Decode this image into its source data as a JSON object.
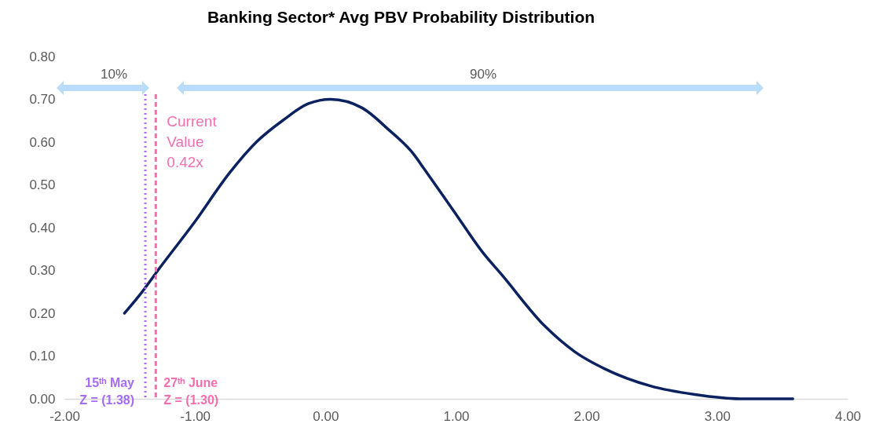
{
  "chart_data": {
    "type": "line",
    "title": "Banking Sector* Avg PBV Probability Distribution",
    "x": [
      -1.54,
      -1.43,
      -1.26,
      -1.01,
      -0.73,
      -0.53,
      -0.33,
      -0.13,
      0.04,
      0.28,
      0.48,
      0.68,
      0.75,
      0.98,
      1.21,
      1.35,
      1.68,
      1.91,
      2.14,
      2.49,
      2.83,
      3.18,
      3.58
    ],
    "series": [
      {
        "color": "#0b2160",
        "values": [
          0.2,
          0.24,
          0.31,
          0.41,
          0.53,
          0.6,
          0.65,
          0.69,
          0.7,
          0.68,
          0.63,
          0.57,
          0.54,
          0.44,
          0.34,
          0.29,
          0.17,
          0.11,
          0.07,
          0.03,
          0.01,
          0.0,
          0.0
        ]
      }
    ],
    "xlim": [
      -2,
      4
    ],
    "xticks": [
      {
        "value": -2,
        "label": "-2.00"
      },
      {
        "value": -1,
        "label": "-1.00"
      },
      {
        "value": 0,
        "label": "0.00"
      },
      {
        "value": 1,
        "label": "1.00"
      },
      {
        "value": 2,
        "label": "2.00"
      },
      {
        "value": 3,
        "label": "3.00"
      },
      {
        "value": 4,
        "label": "4.00"
      }
    ],
    "ylim": [
      0,
      0.8
    ],
    "yticks": [
      {
        "value": 0,
        "label": "0.00"
      },
      {
        "value": 0.1,
        "label": "0.10"
      },
      {
        "value": 0.2,
        "label": "0.20"
      },
      {
        "value": 0.3,
        "label": "0.30"
      },
      {
        "value": 0.4,
        "label": "0.40"
      },
      {
        "value": 0.5,
        "label": "0.50"
      },
      {
        "value": 0.6,
        "label": "0.60"
      },
      {
        "value": 0.7,
        "label": "0.70"
      },
      {
        "value": 0.8,
        "label": "0.80"
      }
    ],
    "grid": false,
    "marker": "none",
    "line_style": "solid",
    "ref_lines": [
      {
        "axis": "x",
        "value": -1.38,
        "label": "15ᵗʰ May\nZ = (1.38)",
        "color": "#a66cf5",
        "line_style": "dotted"
      },
      {
        "axis": "x",
        "value": -1.3,
        "label": "27ᵗʰ June\nZ = (1.30)",
        "color": "#f76eb0",
        "line_style": "dashed"
      }
    ],
    "annotations": [
      "Current\nValue\n0.42x",
      "10%",
      "90%"
    ]
  }
}
